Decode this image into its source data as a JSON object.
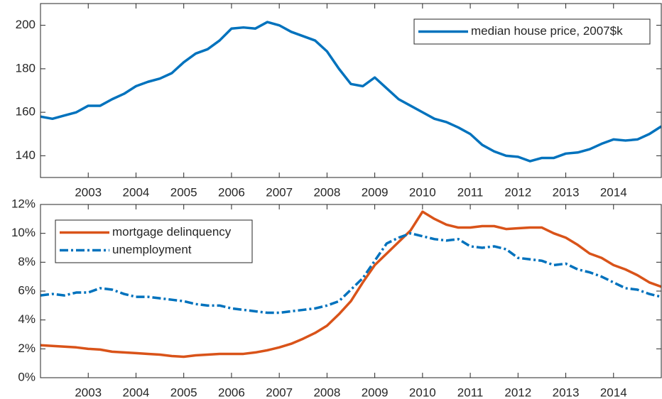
{
  "chart_data": [
    {
      "type": "line",
      "x": [
        2002,
        2002.25,
        2002.5,
        2002.75,
        2003,
        2003.25,
        2003.5,
        2003.75,
        2004,
        2004.25,
        2004.5,
        2004.75,
        2005,
        2005.25,
        2005.5,
        2005.75,
        2006,
        2006.25,
        2006.5,
        2006.75,
        2007,
        2007.25,
        2007.5,
        2007.75,
        2008,
        2008.25,
        2008.5,
        2008.75,
        2009,
        2009.25,
        2009.5,
        2009.75,
        2010,
        2010.25,
        2010.5,
        2010.75,
        2011,
        2011.25,
        2011.5,
        2011.75,
        2012,
        2012.25,
        2012.5,
        2012.75,
        2013,
        2013.25,
        2013.5,
        2013.75,
        2014,
        2014.25,
        2014.5,
        2014.75,
        2015
      ],
      "series": [
        {
          "name": "median house price, 2007$k",
          "color": "#0072bd",
          "linestyle": "solid",
          "values": [
            158,
            157,
            158.5,
            160,
            163,
            163,
            166,
            168.5,
            172,
            174,
            175.5,
            178,
            183,
            187,
            189,
            193,
            198.5,
            199,
            198.5,
            201.5,
            200,
            197,
            195,
            193,
            188,
            180,
            173,
            172,
            176,
            171,
            166,
            163,
            160,
            157,
            155.5,
            153,
            150,
            145,
            142,
            140,
            139.5,
            137.5,
            139,
            139,
            141,
            141.5,
            143,
            145.5,
            147.5,
            147,
            147.5,
            150,
            153.5
          ]
        }
      ],
      "xlim": [
        2002,
        2015
      ],
      "xticks": [
        2003,
        2004,
        2005,
        2006,
        2007,
        2008,
        2009,
        2010,
        2011,
        2012,
        2013,
        2014
      ],
      "ylim": [
        130,
        210
      ],
      "yticks": [
        140,
        160,
        180,
        200
      ],
      "legend": "northeast",
      "grid": false
    },
    {
      "type": "line",
      "x": [
        2002,
        2002.25,
        2002.5,
        2002.75,
        2003,
        2003.25,
        2003.5,
        2003.75,
        2004,
        2004.25,
        2004.5,
        2004.75,
        2005,
        2005.25,
        2005.5,
        2005.75,
        2006,
        2006.25,
        2006.5,
        2006.75,
        2007,
        2007.25,
        2007.5,
        2007.75,
        2008,
        2008.25,
        2008.5,
        2008.75,
        2009,
        2009.25,
        2009.5,
        2009.75,
        2010,
        2010.25,
        2010.5,
        2010.75,
        2011,
        2011.25,
        2011.5,
        2011.75,
        2012,
        2012.25,
        2012.5,
        2012.75,
        2013,
        2013.25,
        2013.5,
        2013.75,
        2014,
        2014.25,
        2014.5,
        2014.75,
        2015
      ],
      "series": [
        {
          "name": "mortgage delinquency",
          "color": "#d95319",
          "linestyle": "solid",
          "values": [
            2.25,
            2.2,
            2.15,
            2.1,
            2.0,
            1.95,
            1.8,
            1.75,
            1.7,
            1.65,
            1.6,
            1.5,
            1.45,
            1.55,
            1.6,
            1.65,
            1.65,
            1.65,
            1.75,
            1.9,
            2.1,
            2.35,
            2.7,
            3.1,
            3.6,
            4.4,
            5.3,
            6.6,
            7.8,
            8.6,
            9.4,
            10.2,
            11.5,
            11.0,
            10.6,
            10.4,
            10.4,
            10.5,
            10.5,
            10.3,
            10.35,
            10.4,
            10.4,
            10.0,
            9.7,
            9.2,
            8.6,
            8.3,
            7.8,
            7.5,
            7.1,
            6.6,
            6.3
          ]
        },
        {
          "name": "unemployment",
          "color": "#0072bd",
          "linestyle": "dashdot",
          "values": [
            5.7,
            5.8,
            5.7,
            5.9,
            5.9,
            6.2,
            6.1,
            5.8,
            5.6,
            5.6,
            5.5,
            5.4,
            5.3,
            5.1,
            5.0,
            5.0,
            4.8,
            4.7,
            4.6,
            4.5,
            4.5,
            4.6,
            4.7,
            4.8,
            5.0,
            5.3,
            6.1,
            6.9,
            8.1,
            9.3,
            9.7,
            10.0,
            9.8,
            9.6,
            9.5,
            9.6,
            9.1,
            9.0,
            9.1,
            8.9,
            8.3,
            8.2,
            8.1,
            7.8,
            7.9,
            7.5,
            7.3,
            7.0,
            6.6,
            6.2,
            6.1,
            5.8,
            5.6
          ]
        }
      ],
      "xlim": [
        2002,
        2015
      ],
      "xticks": [
        2003,
        2004,
        2005,
        2006,
        2007,
        2008,
        2009,
        2010,
        2011,
        2012,
        2013,
        2014
      ],
      "ylim": [
        0,
        12
      ],
      "yticks": [
        {
          "value": 0,
          "label": "0%"
        },
        {
          "value": 2,
          "label": "2%"
        },
        {
          "value": 4,
          "label": "4%"
        },
        {
          "value": 6,
          "label": "6%"
        },
        {
          "value": 8,
          "label": "8%"
        },
        {
          "value": 10,
          "label": "10%"
        },
        {
          "value": 12,
          "label": "12%"
        }
      ],
      "legend": "northwest",
      "grid": false
    }
  ]
}
